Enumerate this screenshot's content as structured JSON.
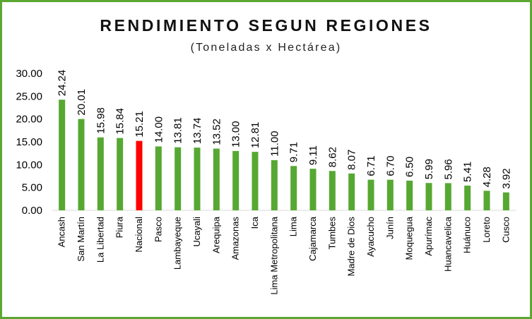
{
  "chart_data": {
    "type": "bar",
    "title": "RENDIMIENTO SEGUN REGIONES",
    "subtitle": "(Toneladas x Hectárea)",
    "xlabel": "",
    "ylabel": "",
    "ylim": [
      0,
      30
    ],
    "yticks": [
      "0.00",
      "5.00",
      "10.00",
      "15.00",
      "20.00",
      "25.00",
      "30.00"
    ],
    "categories": [
      "Ancash",
      "San Martín",
      "La Libertad",
      "Piura",
      "Nacional",
      "Pasco",
      "Lambayeque",
      "Ucayali",
      "Arequipa",
      "Amazonas",
      "Ica",
      "Lima Metropolitana",
      "Lima",
      "Cajamarca",
      "Tumbes",
      "Madre de Dios",
      "Ayacucho",
      "Junín",
      "Moquegua",
      "Apurímac",
      "Huancavelica",
      "Huánuco",
      "Loreto",
      "Cusco"
    ],
    "values": [
      24.24,
      20.01,
      15.98,
      15.84,
      15.21,
      14.0,
      13.81,
      13.74,
      13.52,
      13.0,
      12.81,
      11.0,
      9.71,
      9.11,
      8.62,
      8.07,
      6.71,
      6.7,
      6.5,
      5.99,
      5.96,
      5.41,
      4.28,
      3.92
    ],
    "value_labels": [
      "24.24",
      "20.01",
      "15.98",
      "15.84",
      "15.21",
      "14.00",
      "13.81",
      "13.74",
      "13.52",
      "13.00",
      "12.81",
      "11.00",
      "9.71",
      "9.11",
      "8.62",
      "8.07",
      "6.71",
      "6.70",
      "6.50",
      "5.99",
      "5.96",
      "5.41",
      "4.28",
      "3.92"
    ],
    "bar_color": "#56a832",
    "highlight_category": "Nacional",
    "highlight_color": "#ff0000",
    "frame_color": "#5aa832",
    "grid": false,
    "legend": "none"
  }
}
